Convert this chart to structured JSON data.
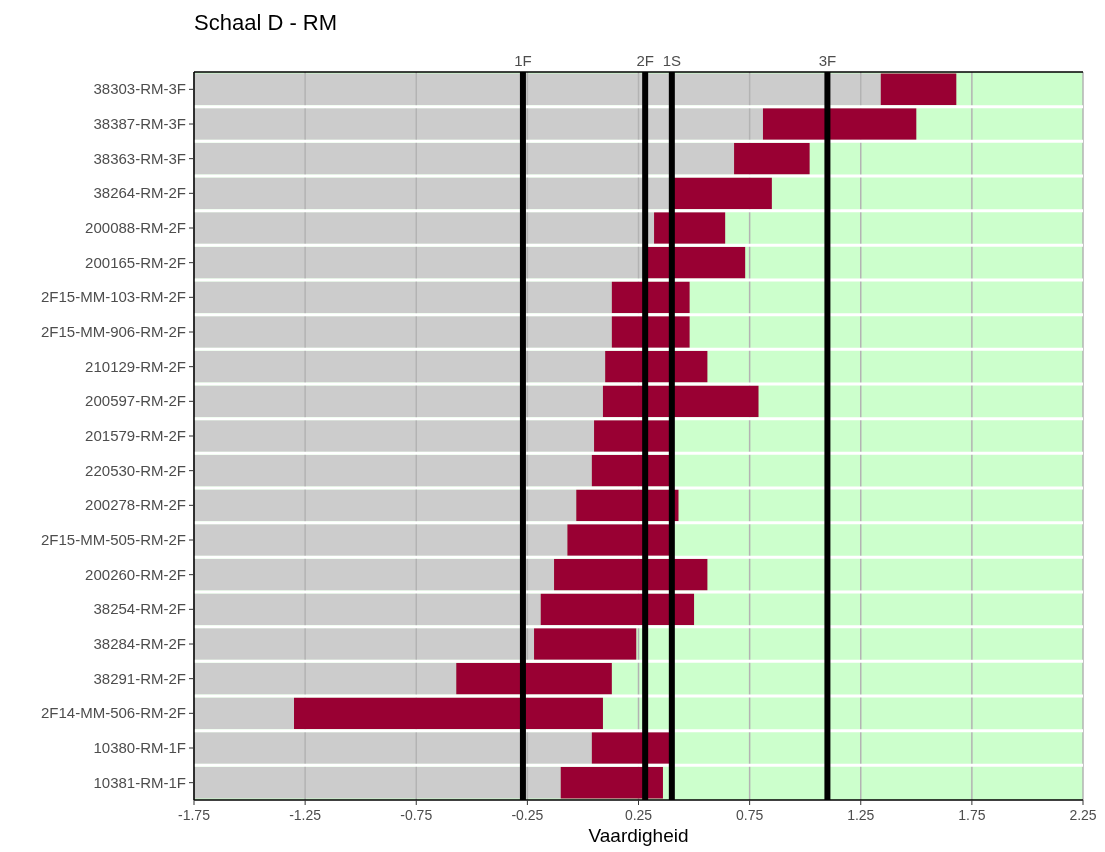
{
  "chart_data": {
    "type": "bar",
    "orientation": "horizontal",
    "title": "Schaal D - RM",
    "xlabel": "Vaardigheid",
    "categories": [
      "38303-RM-3F",
      "38387-RM-3F",
      "38363-RM-3F",
      "38264-RM-2F",
      "200088-RM-2F",
      "200165-RM-2F",
      "2F15-MM-103-RM-2F",
      "2F15-MM-906-RM-2F",
      "210129-RM-2F",
      "200597-RM-2F",
      "201579-RM-2F",
      "220530-RM-2F",
      "200278-RM-2F",
      "2F15-MM-505-RM-2F",
      "200260-RM-2F",
      "38254-RM-2F",
      "38284-RM-2F",
      "38291-RM-2F",
      "2F14-MM-506-RM-2F",
      "10380-RM-1F",
      "10381-RM-1F"
    ],
    "series": [
      {
        "color": "#cccccc",
        "base": [
          -1.75,
          -1.75,
          -1.75,
          -1.75,
          -1.75,
          -1.75,
          -1.75,
          -1.75,
          -1.75,
          -1.75,
          -1.75,
          -1.75,
          -1.75,
          -1.75,
          -1.75,
          -1.75,
          -1.75,
          -1.75,
          -1.75,
          -1.75,
          -1.75
        ],
        "values": [
          3.09,
          2.56,
          2.43,
          2.14,
          2.07,
          2.02,
          1.88,
          1.88,
          1.85,
          1.84,
          1.8,
          1.79,
          1.72,
          1.68,
          1.62,
          1.56,
          1.53,
          1.18,
          0.45,
          1.79,
          1.65
        ]
      },
      {
        "color": "#990033",
        "base": [
          1.34,
          0.81,
          0.68,
          0.39,
          0.32,
          0.27,
          0.13,
          0.13,
          0.1,
          0.09,
          0.05,
          0.04,
          -0.03,
          -0.07,
          -0.13,
          -0.19,
          -0.22,
          -0.57,
          -1.3,
          0.04,
          -0.1
        ],
        "values": [
          0.34,
          0.69,
          0.34,
          0.46,
          0.32,
          0.46,
          0.35,
          0.35,
          0.46,
          0.7,
          0.35,
          0.35,
          0.46,
          0.46,
          0.69,
          0.69,
          0.46,
          0.7,
          1.39,
          0.35,
          0.46
        ]
      }
    ],
    "xlim": [
      -1.75,
      2.25
    ],
    "xticks": [
      -1.75,
      -1.25,
      -0.75,
      -0.25,
      0.25,
      0.75,
      1.25,
      1.75,
      2.25
    ],
    "grid": "x",
    "bands": [
      {
        "axis": "x",
        "from": -1.75,
        "to": 2.25,
        "color": "#ccffcc"
      }
    ],
    "ref_lines": [
      {
        "axis": "x",
        "value": -0.27,
        "label": "1F",
        "color": "#000000"
      },
      {
        "axis": "x",
        "value": 0.28,
        "label": "2F",
        "color": "#000000"
      },
      {
        "axis": "x",
        "value": 0.4,
        "label": "1S",
        "color": "#000000"
      },
      {
        "axis": "x",
        "value": 1.1,
        "label": "3F",
        "color": "#000000"
      }
    ]
  }
}
